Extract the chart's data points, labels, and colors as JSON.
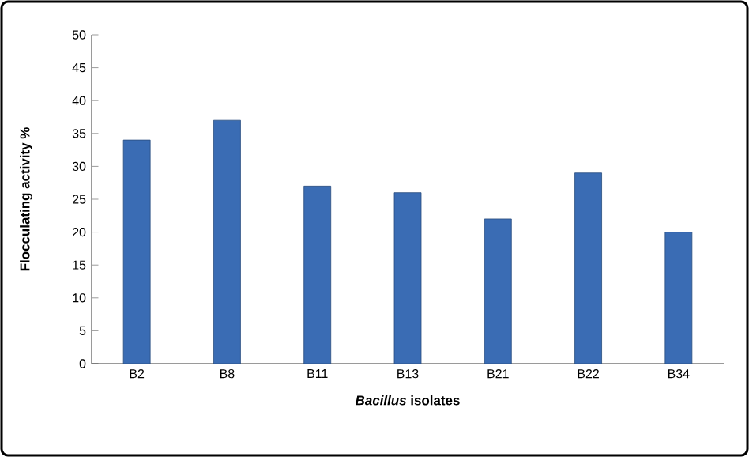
{
  "chart_data": {
    "type": "bar",
    "categories": [
      "B2",
      "B8",
      "B11",
      "B13",
      "B21",
      "B22",
      "B34"
    ],
    "values": [
      34,
      37,
      27,
      26,
      22,
      29,
      20
    ],
    "color": "#3a6cb4",
    "xlabel": "*Bacillus* isolates",
    "ylabel": "Flocculating activity %",
    "ylim": [
      0,
      50
    ],
    "yticks": [
      0,
      5,
      10,
      15,
      20,
      25,
      30,
      35,
      40,
      45,
      50
    ],
    "grid": false
  }
}
